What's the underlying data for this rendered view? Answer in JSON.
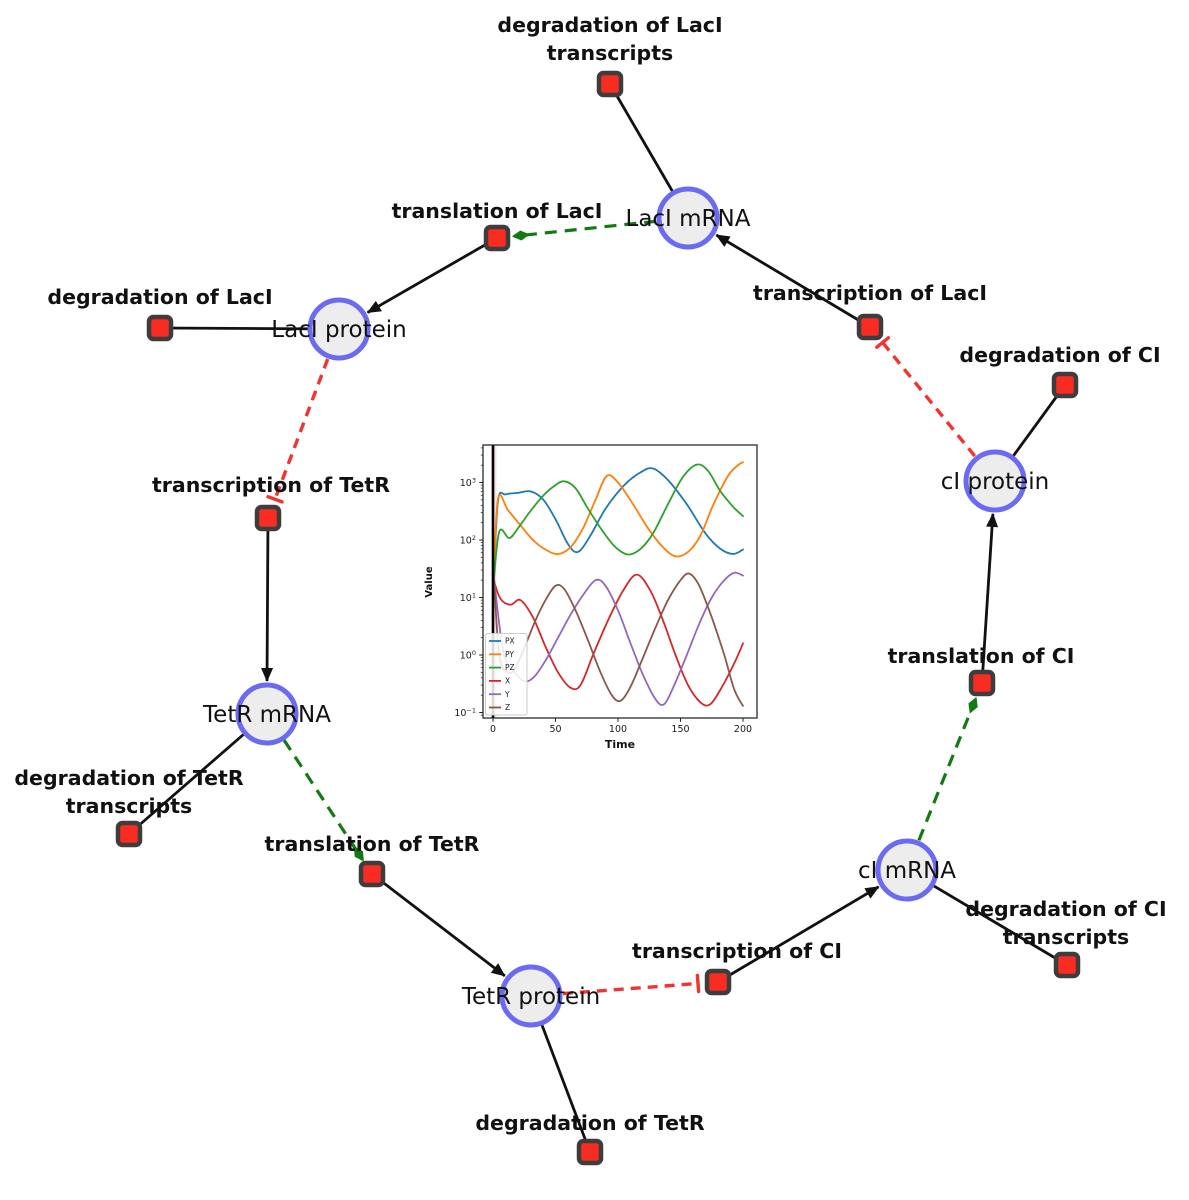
{
  "colors": {
    "species_fill": "#ededed",
    "species_stroke": "#6a6af2",
    "reaction_fill": "#f92c22",
    "reaction_stroke": "#3d3d3d",
    "edge_black": "#111111",
    "modifier_edge_green": "#117a11",
    "inhibition_edge_red": "#f23430"
  },
  "network": {
    "species": [
      {
        "id": "laci-mrna",
        "label": "LacI mRNA"
      },
      {
        "id": "laci-protein",
        "label": "LacI protein"
      },
      {
        "id": "ci-protein",
        "label": "cI protein"
      },
      {
        "id": "tetr-mrna",
        "label": "TetR mRNA"
      },
      {
        "id": "ci-mrna",
        "label": "cI mRNA"
      },
      {
        "id": "tetr-protein",
        "label": "TetR protein"
      }
    ],
    "reactions": [
      {
        "id": "deg-laci-transcripts",
        "label_lines": [
          "degradation of LacI",
          "transcripts"
        ]
      },
      {
        "id": "translation-laci",
        "label_lines": [
          "translation of LacI"
        ]
      },
      {
        "id": "deg-laci",
        "label_lines": [
          "degradation of LacI"
        ]
      },
      {
        "id": "transcription-laci",
        "label_lines": [
          "transcription of LacI"
        ]
      },
      {
        "id": "deg-ci",
        "label_lines": [
          "degradation of CI"
        ]
      },
      {
        "id": "transcription-tetr",
        "label_lines": [
          "transcription of TetR"
        ]
      },
      {
        "id": "translation-ci",
        "label_lines": [
          "translation of CI"
        ]
      },
      {
        "id": "deg-tetr-transcripts",
        "label_lines": [
          "degradation of TetR",
          "transcripts"
        ]
      },
      {
        "id": "translation-tetr",
        "label_lines": [
          "translation of TetR"
        ]
      },
      {
        "id": "transcription-ci",
        "label_lines": [
          "transcription of CI"
        ]
      },
      {
        "id": "deg-ci-transcripts",
        "label_lines": [
          "degradation of CI",
          "transcripts"
        ]
      },
      {
        "id": "deg-tetr",
        "label_lines": [
          "degradation of TetR"
        ]
      }
    ]
  },
  "chart_data": {
    "type": "line",
    "title": "",
    "x_axis": {
      "label": "Time",
      "ticks": [
        0,
        50,
        100,
        150,
        200
      ],
      "range": [
        -8,
        211
      ]
    },
    "y_axis": {
      "label": "Value",
      "scale": "log",
      "tick_exponents": [
        -1,
        0,
        1,
        2,
        3
      ],
      "range_exponents": [
        -1.08,
        3.65
      ]
    },
    "t0_line": 0,
    "legend": {
      "position": "lower left",
      "entries": [
        "PX",
        "PY",
        "PZ",
        "X",
        "Y",
        "Z"
      ]
    },
    "series": [
      {
        "name": "PX",
        "color": "#1f77b4",
        "points": [
          [
            0.5,
            18
          ],
          [
            4,
            480
          ],
          [
            10,
            620
          ],
          [
            20,
            660
          ],
          [
            30,
            700
          ],
          [
            40,
            510
          ],
          [
            50,
            230
          ],
          [
            60,
            85
          ],
          [
            68,
            62
          ],
          [
            78,
            120
          ],
          [
            90,
            350
          ],
          [
            105,
            900
          ],
          [
            118,
            1500
          ],
          [
            128,
            1750
          ],
          [
            140,
            1100
          ],
          [
            155,
            420
          ],
          [
            170,
            130
          ],
          [
            182,
            70
          ],
          [
            192,
            57
          ],
          [
            200,
            68
          ]
        ]
      },
      {
        "name": "PY",
        "color": "#ff7f0e",
        "points": [
          [
            0.5,
            18
          ],
          [
            4,
            520
          ],
          [
            12,
            330
          ],
          [
            22,
            180
          ],
          [
            32,
            100
          ],
          [
            42,
            68
          ],
          [
            52,
            57
          ],
          [
            62,
            75
          ],
          [
            72,
            160
          ],
          [
            82,
            500
          ],
          [
            91,
            1300
          ],
          [
            100,
            1000
          ],
          [
            112,
            420
          ],
          [
            124,
            160
          ],
          [
            136,
            75
          ],
          [
            146,
            52
          ],
          [
            156,
            62
          ],
          [
            166,
            120
          ],
          [
            176,
            400
          ],
          [
            188,
            1300
          ],
          [
            196,
            2000
          ],
          [
            200,
            2250
          ]
        ]
      },
      {
        "name": "PZ",
        "color": "#2ca02c",
        "points": [
          [
            0.5,
            18
          ],
          [
            5,
            140
          ],
          [
            13,
            108
          ],
          [
            20,
            160
          ],
          [
            30,
            320
          ],
          [
            42,
            650
          ],
          [
            50,
            900
          ],
          [
            57,
            1050
          ],
          [
            66,
            800
          ],
          [
            76,
            350
          ],
          [
            88,
            140
          ],
          [
            98,
            75
          ],
          [
            108,
            56
          ],
          [
            118,
            70
          ],
          [
            128,
            130
          ],
          [
            140,
            420
          ],
          [
            152,
            1250
          ],
          [
            163,
            2050
          ],
          [
            172,
            1600
          ],
          [
            182,
            700
          ],
          [
            192,
            380
          ],
          [
            200,
            260
          ]
        ]
      },
      {
        "name": "X",
        "color": "#d62728",
        "points": [
          [
            0.5,
            20
          ],
          [
            6,
            9.5
          ],
          [
            14,
            7.5
          ],
          [
            22,
            9
          ],
          [
            32,
            4.5
          ],
          [
            42,
            1.4
          ],
          [
            52,
            0.5
          ],
          [
            62,
            0.27
          ],
          [
            70,
            0.3
          ],
          [
            80,
            1
          ],
          [
            92,
            4
          ],
          [
            104,
            13
          ],
          [
            115,
            25
          ],
          [
            126,
            13
          ],
          [
            136,
            4
          ],
          [
            146,
            1
          ],
          [
            156,
            0.3
          ],
          [
            166,
            0.15
          ],
          [
            174,
            0.14
          ],
          [
            184,
            0.3
          ],
          [
            194,
            0.8
          ],
          [
            200,
            1.6
          ]
        ]
      },
      {
        "name": "Y",
        "color": "#9467bd",
        "points": [
          [
            0.5,
            25
          ],
          [
            8,
            1.2
          ],
          [
            16,
            0.55
          ],
          [
            25,
            0.35
          ],
          [
            33,
            0.42
          ],
          [
            42,
            0.8
          ],
          [
            52,
            2
          ],
          [
            62,
            5
          ],
          [
            72,
            11
          ],
          [
            82,
            20
          ],
          [
            90,
            16
          ],
          [
            100,
            6
          ],
          [
            110,
            1.6
          ],
          [
            120,
            0.45
          ],
          [
            130,
            0.17
          ],
          [
            137,
            0.14
          ],
          [
            145,
            0.3
          ],
          [
            155,
            1
          ],
          [
            165,
            3.5
          ],
          [
            175,
            10
          ],
          [
            185,
            20
          ],
          [
            193,
            27
          ],
          [
            200,
            24
          ]
        ]
      },
      {
        "name": "Z",
        "color": "#8c564b",
        "points": [
          [
            0.5,
            25
          ],
          [
            5,
            1
          ],
          [
            12,
            0.5
          ],
          [
            18,
            0.6
          ],
          [
            26,
            1.5
          ],
          [
            34,
            4
          ],
          [
            42,
            9
          ],
          [
            50,
            16
          ],
          [
            57,
            14
          ],
          [
            66,
            6
          ],
          [
            76,
            1.8
          ],
          [
            86,
            0.5
          ],
          [
            95,
            0.2
          ],
          [
            102,
            0.16
          ],
          [
            110,
            0.28
          ],
          [
            120,
            0.9
          ],
          [
            130,
            3
          ],
          [
            140,
            9
          ],
          [
            150,
            20
          ],
          [
            157,
            26
          ],
          [
            165,
            16
          ],
          [
            175,
            4.5
          ],
          [
            185,
            1
          ],
          [
            193,
            0.25
          ],
          [
            200,
            0.13
          ]
        ]
      }
    ]
  }
}
